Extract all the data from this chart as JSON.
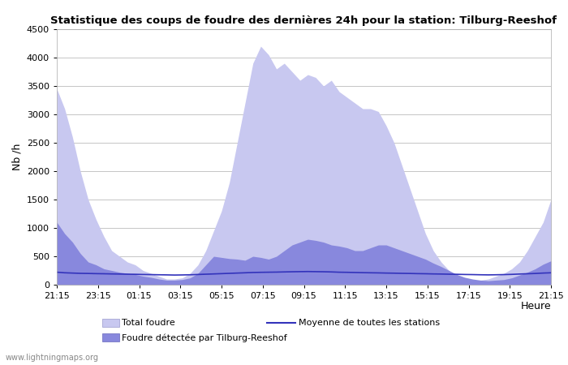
{
  "title": "Statistique des coups de foudre des dernières 24h pour la station: Tilburg-Reeshof",
  "ylabel": "Nb /h",
  "xlabel": "Heure",
  "ylim": [
    0,
    4500
  ],
  "yticks": [
    0,
    500,
    1000,
    1500,
    2000,
    2500,
    3000,
    3500,
    4000,
    4500
  ],
  "xtick_labels": [
    "21:15",
    "23:15",
    "01:15",
    "03:15",
    "05:15",
    "07:15",
    "09:15",
    "11:15",
    "13:15",
    "15:15",
    "17:15",
    "19:15",
    "21:15"
  ],
  "color_total": "#c8c8f0",
  "color_detected": "#8888dd",
  "color_mean": "#3333bb",
  "watermark": "www.lightningmaps.org",
  "legend_items": [
    "Total foudre",
    "Moyenne de toutes les stations",
    "Foudre détectée par Tilburg-Reeshof"
  ],
  "total_foudre": [
    3450,
    3100,
    2600,
    2000,
    1500,
    1150,
    850,
    600,
    500,
    400,
    350,
    250,
    200,
    150,
    100,
    100,
    120,
    200,
    350,
    600,
    950,
    1300,
    1800,
    2500,
    3200,
    3900,
    4200,
    4050,
    3800,
    3900,
    3750,
    3600,
    3700,
    3650,
    3500,
    3600,
    3400,
    3300,
    3200,
    3100,
    3100,
    3050,
    2800,
    2500,
    2100,
    1700,
    1300,
    900,
    600,
    400,
    250,
    150,
    100,
    80,
    80,
    100,
    150,
    200,
    280,
    400,
    600,
    850,
    1100,
    1500
  ],
  "detected_foudre": [
    1100,
    900,
    750,
    550,
    400,
    350,
    280,
    250,
    220,
    200,
    180,
    150,
    130,
    100,
    80,
    80,
    90,
    120,
    200,
    350,
    500,
    480,
    460,
    450,
    430,
    500,
    480,
    450,
    500,
    600,
    700,
    750,
    800,
    780,
    750,
    700,
    680,
    650,
    600,
    600,
    650,
    700,
    700,
    650,
    600,
    550,
    500,
    450,
    380,
    320,
    250,
    180,
    130,
    100,
    80,
    70,
    80,
    90,
    120,
    170,
    220,
    280,
    360,
    420
  ],
  "mean_line": [
    220,
    210,
    205,
    200,
    198,
    195,
    193,
    190,
    188,
    185,
    183,
    180,
    178,
    175,
    173,
    170,
    172,
    175,
    180,
    185,
    190,
    195,
    200,
    205,
    210,
    215,
    218,
    220,
    222,
    225,
    228,
    230,
    232,
    230,
    228,
    225,
    220,
    218,
    215,
    212,
    210,
    208,
    205,
    203,
    200,
    198,
    195,
    193,
    190,
    188,
    185,
    183,
    180,
    178,
    175,
    173,
    175,
    178,
    182,
    188,
    193,
    198,
    205,
    210
  ]
}
